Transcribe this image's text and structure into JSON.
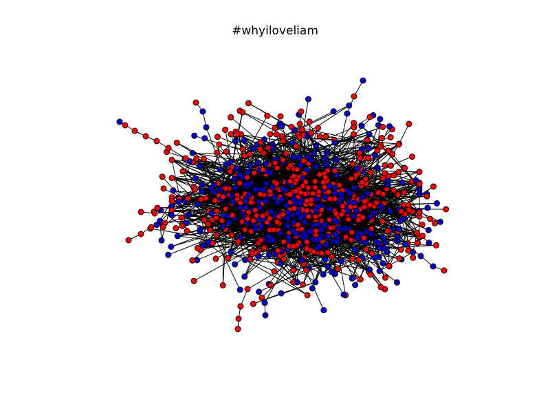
{
  "figure": {
    "title": "#whyiloveliam",
    "background": "#ffffff"
  },
  "graph": {
    "node_colors": {
      "red": "#ff0000",
      "blue": "#0000cc"
    },
    "node_outline_color": "#000000",
    "edge_color": "#000000"
  }
}
